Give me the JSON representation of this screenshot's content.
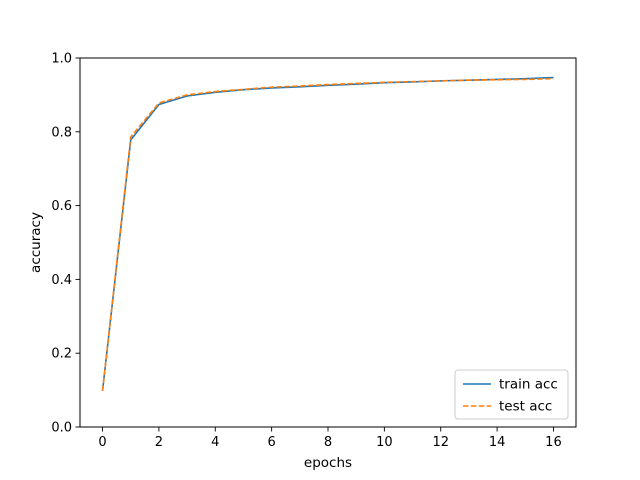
{
  "chart_data": {
    "type": "line",
    "title": "",
    "xlabel": "epochs",
    "ylabel": "accuracy",
    "xlim": [
      -0.8,
      16.8
    ],
    "ylim": [
      0.0,
      1.0
    ],
    "xticks": [
      0,
      2,
      4,
      6,
      8,
      10,
      12,
      14,
      16
    ],
    "yticks": [
      0.0,
      0.2,
      0.4,
      0.6,
      0.8,
      1.0
    ],
    "xtick_labels": [
      "0",
      "2",
      "4",
      "6",
      "8",
      "10",
      "12",
      "14",
      "16"
    ],
    "ytick_labels": [
      "0.0",
      "0.2",
      "0.4",
      "0.6",
      "0.8",
      "1.0"
    ],
    "grid": false,
    "legend_position": "lower-right",
    "x": [
      0,
      1,
      2,
      3,
      4,
      5,
      6,
      7,
      8,
      9,
      10,
      11,
      12,
      13,
      14,
      15,
      16
    ],
    "series": [
      {
        "name": "train acc",
        "color": "#1f77b4",
        "linestyle": "solid",
        "values": [
          0.098,
          0.778,
          0.874,
          0.897,
          0.907,
          0.914,
          0.919,
          0.922,
          0.926,
          0.929,
          0.933,
          0.935,
          0.938,
          0.94,
          0.942,
          0.944,
          0.947
        ]
      },
      {
        "name": "test acc",
        "color": "#ff7f0e",
        "linestyle": "dashed",
        "values": [
          0.098,
          0.786,
          0.878,
          0.9,
          0.909,
          0.915,
          0.921,
          0.924,
          0.928,
          0.931,
          0.934,
          0.936,
          0.938,
          0.94,
          0.941,
          0.942,
          0.944
        ]
      }
    ]
  }
}
